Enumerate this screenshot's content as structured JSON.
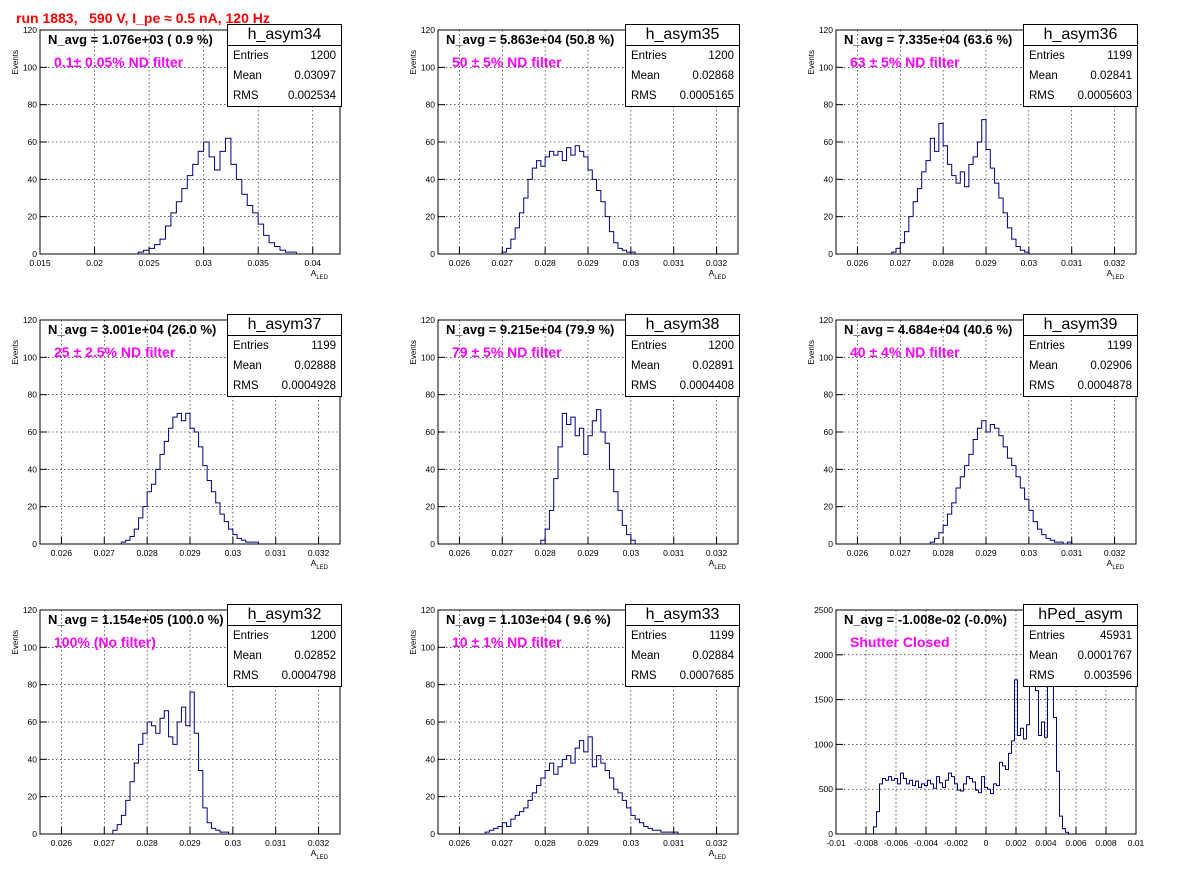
{
  "run_title": "run 1883,   590 V, I_pe ≈ 0.5 nA, 120 Hz",
  "colors": {
    "title": "#ff0000",
    "annotation": "#ff00ff",
    "histogram": "#000080",
    "grid": "#000000"
  },
  "chart_data": [
    {
      "type": "histogram",
      "name": "h_asym34",
      "navg": "N_avg = 1.076e+03 ( 0.9 %)",
      "filter": "0.1± 0.05% ND filter",
      "stats": {
        "entries_label": "Entries",
        "entries": "1200",
        "mean_label": "Mean",
        "mean": "0.03097",
        "rms_label": "RMS",
        "rms": "0.002534"
      },
      "xlabel": "A_LED",
      "ylabel": "Events",
      "xlim": [
        0.015,
        0.0425
      ],
      "ylim": [
        0,
        120
      ],
      "xticks": [
        0.015,
        0.02,
        0.025,
        0.03,
        0.035,
        0.04
      ],
      "xtick_labels": [
        "0.015",
        "0.02",
        "0.025",
        "0.03",
        "0.035",
        "0.04"
      ],
      "yticks": [
        0,
        20,
        40,
        60,
        80,
        100,
        120
      ],
      "ytick_labels": [
        "0",
        "20",
        "40",
        "60",
        "80",
        "100",
        "120"
      ],
      "grid": true,
      "bin_edges": [
        0.024,
        0.0245,
        0.025,
        0.0255,
        0.026,
        0.0265,
        0.027,
        0.0275,
        0.028,
        0.0285,
        0.029,
        0.0295,
        0.03,
        0.0305,
        0.031,
        0.0315,
        0.032,
        0.0325,
        0.033,
        0.0335,
        0.034,
        0.0345,
        0.035,
        0.0355,
        0.036,
        0.0365,
        0.037,
        0.0375,
        0.038,
        0.0385
      ],
      "counts": [
        1,
        2,
        3,
        5,
        8,
        15,
        22,
        28,
        35,
        42,
        48,
        55,
        60,
        52,
        45,
        55,
        62,
        48,
        40,
        32,
        26,
        22,
        16,
        10,
        6,
        4,
        2,
        1,
        1
      ]
    },
    {
      "type": "histogram",
      "name": "h_asym35",
      "navg": "N_avg = 5.863e+04 (50.8 %)",
      "filter": "50 ± 5% ND filter",
      "stats": {
        "entries_label": "Entries",
        "entries": "1200",
        "mean_label": "Mean",
        "mean": "0.02868",
        "rms_label": "RMS",
        "rms": "0.0005165"
      },
      "xlabel": "A_LED",
      "ylabel": "Events",
      "xlim": [
        0.0255,
        0.0325
      ],
      "ylim": [
        0,
        120
      ],
      "xticks": [
        0.026,
        0.027,
        0.028,
        0.029,
        0.03,
        0.031,
        0.032
      ],
      "xtick_labels": [
        "0.026",
        "0.027",
        "0.028",
        "0.029",
        "0.03",
        "0.031",
        "0.032"
      ],
      "yticks": [
        0,
        20,
        40,
        60,
        80,
        100,
        120
      ],
      "ytick_labels": [
        "0",
        "20",
        "40",
        "60",
        "80",
        "100",
        "120"
      ],
      "grid": true,
      "bin_edges": [
        0.027,
        0.0271,
        0.0272,
        0.0273,
        0.0274,
        0.0275,
        0.0276,
        0.0277,
        0.0278,
        0.0279,
        0.028,
        0.0281,
        0.0282,
        0.0283,
        0.0284,
        0.0285,
        0.0286,
        0.0287,
        0.0288,
        0.0289,
        0.029,
        0.0291,
        0.0292,
        0.0293,
        0.0294,
        0.0295,
        0.0296,
        0.0297,
        0.0298,
        0.0299,
        0.03,
        0.0301
      ],
      "counts": [
        1,
        3,
        8,
        14,
        22,
        30,
        40,
        46,
        50,
        47,
        52,
        55,
        53,
        55,
        50,
        57,
        53,
        58,
        55,
        52,
        45,
        40,
        34,
        28,
        20,
        12,
        6,
        3,
        2,
        1,
        1
      ]
    },
    {
      "type": "histogram",
      "name": "h_asym36",
      "navg": "N_avg = 7.335e+04 (63.6 %)",
      "filter": "63 ± 5% ND filter",
      "stats": {
        "entries_label": "Entries",
        "entries": "1199",
        "mean_label": "Mean",
        "mean": "0.02841",
        "rms_label": "RMS",
        "rms": "0.0005603"
      },
      "xlabel": "A_LED",
      "ylabel": "Events",
      "xlim": [
        0.0255,
        0.0325
      ],
      "ylim": [
        0,
        120
      ],
      "xticks": [
        0.026,
        0.027,
        0.028,
        0.029,
        0.03,
        0.031,
        0.032
      ],
      "xtick_labels": [
        "0.026",
        "0.027",
        "0.028",
        "0.029",
        "0.03",
        "0.031",
        "0.032"
      ],
      "yticks": [
        0,
        20,
        40,
        60,
        80,
        100,
        120
      ],
      "ytick_labels": [
        "0",
        "20",
        "40",
        "60",
        "80",
        "100",
        "120"
      ],
      "grid": true,
      "bin_edges": [
        0.0268,
        0.0269,
        0.027,
        0.0271,
        0.0272,
        0.0273,
        0.0274,
        0.0275,
        0.0276,
        0.0277,
        0.0278,
        0.0279,
        0.028,
        0.0281,
        0.0282,
        0.0283,
        0.0284,
        0.0285,
        0.0286,
        0.0287,
        0.0288,
        0.0289,
        0.029,
        0.0291,
        0.0292,
        0.0293,
        0.0294,
        0.0295,
        0.0296,
        0.0297,
        0.0298,
        0.0299,
        0.03
      ],
      "counts": [
        1,
        3,
        6,
        12,
        20,
        28,
        35,
        44,
        50,
        62,
        55,
        70,
        58,
        48,
        42,
        38,
        44,
        36,
        48,
        52,
        60,
        72,
        56,
        46,
        38,
        30,
        22,
        14,
        8,
        4,
        2,
        1
      ]
    },
    {
      "type": "histogram",
      "name": "h_asym37",
      "navg": "N_avg = 3.001e+04 (26.0 %)",
      "filter": "25 ± 2.5% ND filter",
      "stats": {
        "entries_label": "Entries",
        "entries": "1199",
        "mean_label": "Mean",
        "mean": "0.02888",
        "rms_label": "RMS",
        "rms": "0.0004928"
      },
      "xlabel": "A_LED",
      "ylabel": "Events",
      "xlim": [
        0.0255,
        0.0325
      ],
      "ylim": [
        0,
        120
      ],
      "xticks": [
        0.026,
        0.027,
        0.028,
        0.029,
        0.03,
        0.031,
        0.032
      ],
      "xtick_labels": [
        "0.026",
        "0.027",
        "0.028",
        "0.029",
        "0.03",
        "0.031",
        "0.032"
      ],
      "yticks": [
        0,
        20,
        40,
        60,
        80,
        100,
        120
      ],
      "ytick_labels": [
        "0",
        "20",
        "40",
        "60",
        "80",
        "100",
        "120"
      ],
      "grid": true,
      "bin_edges": [
        0.0274,
        0.0275,
        0.0276,
        0.0277,
        0.0278,
        0.0279,
        0.028,
        0.0281,
        0.0282,
        0.0283,
        0.0284,
        0.0285,
        0.0286,
        0.0287,
        0.0288,
        0.0289,
        0.029,
        0.0291,
        0.0292,
        0.0293,
        0.0294,
        0.0295,
        0.0296,
        0.0297,
        0.0298,
        0.0299,
        0.03,
        0.0301,
        0.0302,
        0.0303,
        0.0304,
        0.0305,
        0.0306
      ],
      "counts": [
        1,
        2,
        4,
        8,
        14,
        20,
        28,
        32,
        40,
        48,
        55,
        62,
        68,
        70,
        66,
        70,
        62,
        60,
        52,
        42,
        34,
        28,
        22,
        16,
        12,
        8,
        5,
        3,
        2,
        1,
        1,
        1
      ]
    },
    {
      "type": "histogram",
      "name": "h_asym38",
      "navg": "N_avg = 9.215e+04 (79.9 %)",
      "filter": "79 ± 5% ND filter",
      "stats": {
        "entries_label": "Entries",
        "entries": "1200",
        "mean_label": "Mean",
        "mean": "0.02891",
        "rms_label": "RMS",
        "rms": "0.0004408"
      },
      "xlabel": "A_LED",
      "ylabel": "Events",
      "xlim": [
        0.0255,
        0.0325
      ],
      "ylim": [
        0,
        120
      ],
      "xticks": [
        0.026,
        0.027,
        0.028,
        0.029,
        0.03,
        0.031,
        0.032
      ],
      "xtick_labels": [
        "0.026",
        "0.027",
        "0.028",
        "0.029",
        "0.03",
        "0.031",
        "0.032"
      ],
      "yticks": [
        0,
        20,
        40,
        60,
        80,
        100,
        120
      ],
      "ytick_labels": [
        "0",
        "20",
        "40",
        "60",
        "80",
        "100",
        "120"
      ],
      "grid": true,
      "bin_edges": [
        0.0279,
        0.028,
        0.0281,
        0.0282,
        0.0283,
        0.0284,
        0.0285,
        0.0286,
        0.0287,
        0.0288,
        0.0289,
        0.029,
        0.0291,
        0.0292,
        0.0293,
        0.0294,
        0.0295,
        0.0296,
        0.0297,
        0.0298,
        0.0299,
        0.03,
        0.0301
      ],
      "counts": [
        2,
        8,
        18,
        35,
        52,
        70,
        64,
        68,
        58,
        62,
        48,
        58,
        66,
        72,
        60,
        54,
        40,
        28,
        18,
        10,
        5,
        2
      ]
    },
    {
      "type": "histogram",
      "name": "h_asym39",
      "navg": "N_avg = 4.684e+04 (40.6 %)",
      "filter": "40 ± 4% ND filter",
      "stats": {
        "entries_label": "Entries",
        "entries": "1199",
        "mean_label": "Mean",
        "mean": "0.02906",
        "rms_label": "RMS",
        "rms": "0.0004878"
      },
      "xlabel": "A_LED",
      "ylabel": "Events",
      "xlim": [
        0.0255,
        0.0325
      ],
      "ylim": [
        0,
        120
      ],
      "xticks": [
        0.026,
        0.027,
        0.028,
        0.029,
        0.03,
        0.031,
        0.032
      ],
      "xtick_labels": [
        "0.026",
        "0.027",
        "0.028",
        "0.029",
        "0.03",
        "0.031",
        "0.032"
      ],
      "yticks": [
        0,
        20,
        40,
        60,
        80,
        100,
        120
      ],
      "ytick_labels": [
        "0",
        "20",
        "40",
        "60",
        "80",
        "100",
        "120"
      ],
      "grid": true,
      "bin_edges": [
        0.0277,
        0.0278,
        0.0279,
        0.028,
        0.0281,
        0.0282,
        0.0283,
        0.0284,
        0.0285,
        0.0286,
        0.0287,
        0.0288,
        0.0289,
        0.029,
        0.0291,
        0.0292,
        0.0293,
        0.0294,
        0.0295,
        0.0296,
        0.0297,
        0.0298,
        0.0299,
        0.03,
        0.0301,
        0.0302,
        0.0303,
        0.0304,
        0.0305,
        0.0306,
        0.0307,
        0.0308,
        0.0309,
        0.031
      ],
      "counts": [
        1,
        3,
        6,
        10,
        16,
        22,
        30,
        36,
        42,
        48,
        56,
        62,
        66,
        60,
        64,
        62,
        58,
        52,
        46,
        42,
        36,
        30,
        24,
        18,
        12,
        8,
        5,
        3,
        2,
        1,
        1,
        0,
        1
      ]
    },
    {
      "type": "histogram",
      "name": "h_asym32",
      "navg": "N_avg = 1.154e+05 (100.0 %)",
      "filter": "100% (No filter)",
      "stats": {
        "entries_label": "Entries",
        "entries": "1200",
        "mean_label": "Mean",
        "mean": "0.02852",
        "rms_label": "RMS",
        "rms": "0.0004798"
      },
      "xlabel": "A_LED",
      "ylabel": "Events",
      "xlim": [
        0.0255,
        0.0325
      ],
      "ylim": [
        0,
        120
      ],
      "xticks": [
        0.026,
        0.027,
        0.028,
        0.029,
        0.03,
        0.031,
        0.032
      ],
      "xtick_labels": [
        "0.026",
        "0.027",
        "0.028",
        "0.029",
        "0.03",
        "0.031",
        "0.032"
      ],
      "yticks": [
        0,
        20,
        40,
        60,
        80,
        100,
        120
      ],
      "ytick_labels": [
        "0",
        "20",
        "40",
        "60",
        "80",
        "100",
        "120"
      ],
      "grid": true,
      "bin_edges": [
        0.0272,
        0.0273,
        0.0274,
        0.0275,
        0.0276,
        0.0277,
        0.0278,
        0.0279,
        0.028,
        0.0281,
        0.0282,
        0.0283,
        0.0284,
        0.0285,
        0.0286,
        0.0287,
        0.0288,
        0.0289,
        0.029,
        0.0291,
        0.0292,
        0.0293,
        0.0294,
        0.0295,
        0.0296,
        0.0297,
        0.0298,
        0.0299
      ],
      "counts": [
        2,
        5,
        10,
        18,
        28,
        38,
        48,
        54,
        60,
        58,
        54,
        62,
        66,
        52,
        48,
        60,
        68,
        58,
        76,
        54,
        34,
        14,
        6,
        3,
        2,
        1,
        1
      ]
    },
    {
      "type": "histogram",
      "name": "h_asym33",
      "navg": "N_avg = 1.103e+04 ( 9.6 %)",
      "filter": "10 ± 1% ND filter",
      "stats": {
        "entries_label": "Entries",
        "entries": "1199",
        "mean_label": "Mean",
        "mean": "0.02884",
        "rms_label": "RMS",
        "rms": "0.0007685"
      },
      "xlabel": "A_LED",
      "ylabel": "Events",
      "xlim": [
        0.0255,
        0.0325
      ],
      "ylim": [
        0,
        120
      ],
      "xticks": [
        0.026,
        0.027,
        0.028,
        0.029,
        0.03,
        0.031,
        0.032
      ],
      "xtick_labels": [
        "0.026",
        "0.027",
        "0.028",
        "0.029",
        "0.03",
        "0.031",
        "0.032"
      ],
      "yticks": [
        0,
        20,
        40,
        60,
        80,
        100,
        120
      ],
      "ytick_labels": [
        "0",
        "20",
        "40",
        "60",
        "80",
        "100",
        "120"
      ],
      "grid": true,
      "bin_edges": [
        0.0266,
        0.0267,
        0.0268,
        0.0269,
        0.027,
        0.0271,
        0.0272,
        0.0273,
        0.0274,
        0.0275,
        0.0276,
        0.0277,
        0.0278,
        0.0279,
        0.028,
        0.0281,
        0.0282,
        0.0283,
        0.0284,
        0.0285,
        0.0286,
        0.0287,
        0.0288,
        0.0289,
        0.029,
        0.0291,
        0.0292,
        0.0293,
        0.0294,
        0.0295,
        0.0296,
        0.0297,
        0.0298,
        0.0299,
        0.03,
        0.0301,
        0.0302,
        0.0303,
        0.0304,
        0.0305,
        0.0306,
        0.0307,
        0.0308,
        0.0309,
        0.031,
        0.0311
      ],
      "counts": [
        1,
        2,
        3,
        4,
        6,
        4,
        8,
        10,
        12,
        14,
        18,
        22,
        26,
        30,
        34,
        38,
        32,
        36,
        40,
        42,
        38,
        46,
        50,
        44,
        52,
        36,
        42,
        38,
        34,
        30,
        24,
        22,
        18,
        14,
        10,
        8,
        6,
        4,
        3,
        2,
        2,
        1,
        1,
        1,
        1
      ]
    },
    {
      "type": "histogram",
      "name": "hPed_asym",
      "navg": "N_avg = -1.008e-02 (-0.0%)",
      "filter": "Shutter Closed",
      "stats": {
        "entries_label": "Entries",
        "entries": "45931",
        "mean_label": "Mean",
        "mean": "0.0001767",
        "rms_label": "RMS",
        "rms": "0.003596"
      },
      "xlabel": "",
      "ylabel": "",
      "xlim": [
        -0.01,
        0.01
      ],
      "ylim": [
        0,
        2500
      ],
      "xticks": [
        -0.01,
        -0.008,
        -0.006,
        -0.004,
        -0.002,
        0,
        0.002,
        0.004,
        0.006,
        0.008,
        0.01
      ],
      "xtick_labels": [
        "-0.01",
        "-0.008",
        "-0.006",
        "-0.004",
        "-0.002",
        "0",
        "0.002",
        "0.004",
        "0.006",
        "0.008",
        "0.01"
      ],
      "yticks": [
        0,
        500,
        1000,
        1500,
        2000,
        2500
      ],
      "ytick_labels": [
        "0",
        "500",
        "1000",
        "1500",
        "2000",
        "2500"
      ],
      "grid": true,
      "bin_edges": [
        -0.0075,
        -0.0073,
        -0.0071,
        -0.0069,
        -0.0067,
        -0.0065,
        -0.0063,
        -0.0061,
        -0.0059,
        -0.0057,
        -0.0055,
        -0.0053,
        -0.0051,
        -0.0049,
        -0.0047,
        -0.0045,
        -0.0043,
        -0.0041,
        -0.0039,
        -0.0037,
        -0.0035,
        -0.0033,
        -0.0031,
        -0.0029,
        -0.0027,
        -0.0025,
        -0.0023,
        -0.0021,
        -0.0019,
        -0.0017,
        -0.0015,
        -0.0013,
        -0.0011,
        -0.0009,
        -0.0007,
        -0.0005,
        -0.0003,
        -0.0001,
        0.0001,
        0.0003,
        0.0005,
        0.0007,
        0.0009,
        0.0011,
        0.0013,
        0.0015,
        0.0017,
        0.0019,
        0.0021,
        0.0023,
        0.0025,
        0.0027,
        0.0029,
        0.0031,
        0.0033,
        0.0035,
        0.0037,
        0.0039,
        0.0041,
        0.0043,
        0.0045,
        0.0047,
        0.0049,
        0.0051,
        0.0053,
        0.0055
      ],
      "counts": [
        80,
        250,
        560,
        620,
        600,
        640,
        600,
        620,
        560,
        680,
        620,
        560,
        600,
        540,
        590,
        520,
        560,
        540,
        600,
        560,
        510,
        640,
        570,
        520,
        600,
        680,
        640,
        560,
        490,
        480,
        560,
        640,
        620,
        580,
        490,
        460,
        640,
        520,
        500,
        450,
        560,
        540,
        800,
        760,
        720,
        900,
        1040,
        1720,
        1100,
        1180,
        1060,
        1220,
        1900,
        2200,
        1600,
        1100,
        1250,
        1080,
        1950,
        2050,
        1300,
        700,
        200,
        60,
        20
      ]
    }
  ]
}
